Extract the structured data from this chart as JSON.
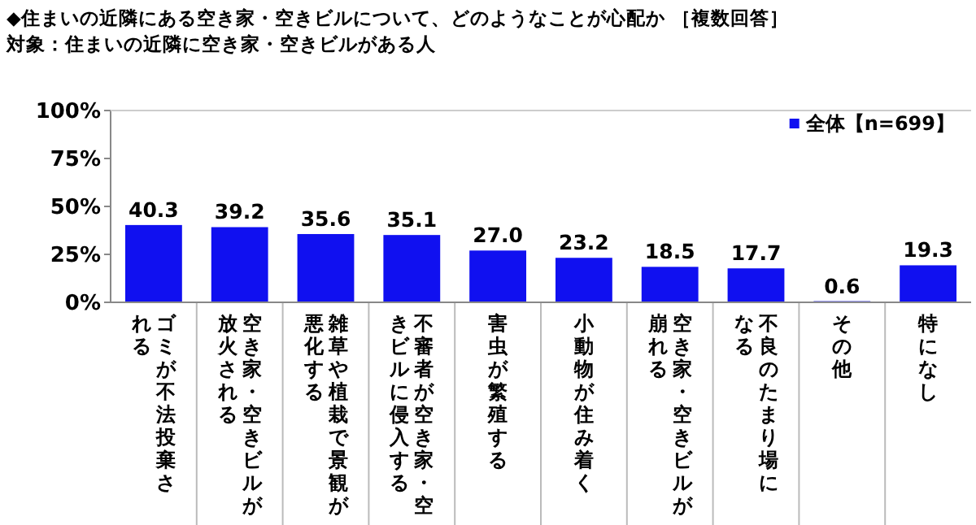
{
  "chart_data": {
    "type": "bar",
    "title": "◆住まいの近隣にある空き家・空きビルについて、どのようなことが心配か ［複数回答］",
    "subtitle": "対象：住まいの近隣に空き家・空きビルがある人",
    "categories": [
      "ゴミが不法投棄される",
      "空き家・空きビルが放火される",
      "雑草や植栽で景観が悪化する",
      "不審者が空き家・空きビルに侵入する",
      "害虫が繁殖する",
      "小動物が住み着く",
      "空き家・空きビルが崩れる",
      "不良のたまり場になる",
      "その他",
      "特になし"
    ],
    "series": [
      {
        "name": "全体【n=699】",
        "color": "#1010f0",
        "values": [
          40.3,
          39.2,
          35.6,
          35.1,
          27.0,
          23.2,
          18.5,
          17.7,
          0.6,
          19.3
        ],
        "value_labels": [
          "40.3",
          "39.2",
          "35.6",
          "35.1",
          "27.0",
          "23.2",
          "18.5",
          "17.7",
          "0.6",
          "19.3"
        ]
      }
    ],
    "ylim": [
      0,
      100
    ],
    "yticks": [
      {
        "value": 0,
        "label": "0%"
      },
      {
        "value": 25,
        "label": "25%"
      },
      {
        "value": 50,
        "label": "50%"
      },
      {
        "value": 75,
        "label": "75%"
      },
      {
        "value": 100,
        "label": "100%"
      }
    ],
    "legend": "top right"
  }
}
